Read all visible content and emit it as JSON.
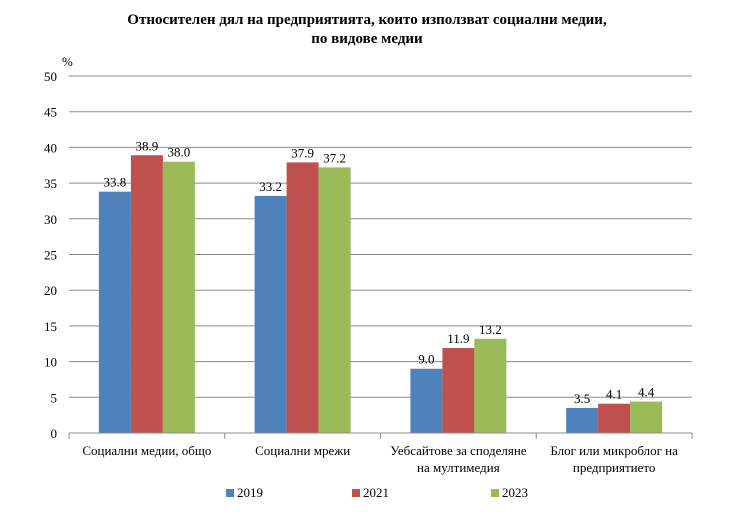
{
  "chart_data": {
    "type": "bar",
    "title_line1": "Относителен дял на предприятията, които използват социални медии,",
    "title_line2": "по видове медии",
    "ylabel": "%",
    "ylim": [
      0,
      50
    ],
    "yticks": [
      "0",
      "5",
      "10",
      "15",
      "20",
      "25",
      "30",
      "35",
      "40",
      "45",
      "50"
    ],
    "grid": true,
    "legend_position": "bottom",
    "categories": [
      [
        "Социални медии, общо"
      ],
      [
        "Социални мрежи"
      ],
      [
        "Уебсайтове за споделяне",
        "на мултимедия"
      ],
      [
        "Блог или микроблог на",
        "предприятието"
      ]
    ],
    "series": [
      {
        "name": "2019",
        "color": "#4f81bd",
        "values": [
          33.8,
          33.2,
          9.0,
          3.5
        ],
        "labels": [
          "33.8",
          "33.2",
          "9.0",
          "3.5"
        ]
      },
      {
        "name": "2021",
        "color": "#c0504d",
        "values": [
          38.9,
          37.9,
          11.9,
          4.1
        ],
        "labels": [
          "38.9",
          "37.9",
          "11.9",
          "4.1"
        ]
      },
      {
        "name": "2023",
        "color": "#9bbb59",
        "values": [
          38.0,
          37.2,
          13.2,
          4.4
        ],
        "labels": [
          "38.0",
          "37.2",
          "13.2",
          "4.4"
        ]
      }
    ]
  }
}
